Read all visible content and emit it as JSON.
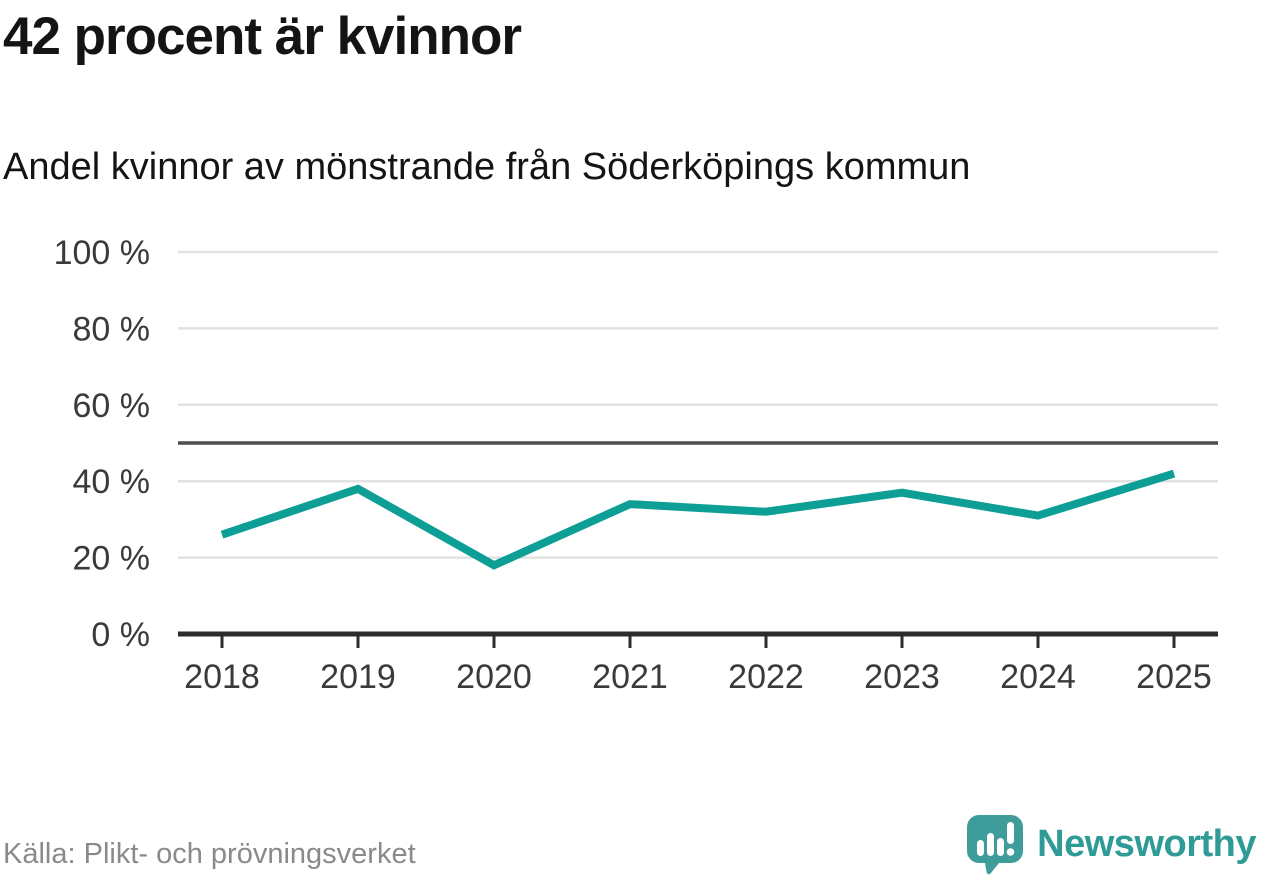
{
  "header": {
    "title": "42 procent är kvinnor",
    "subtitle": "Andel kvinnor av mönstrande från Söderköpings kommun"
  },
  "footer": {
    "source": "Källa: Plikt- och prövningsverket",
    "brand": "Newsworthy"
  },
  "colors": {
    "line": "#0d9e96",
    "grid": "#e2e2e2",
    "axis": "#2d2d2d",
    "reference": "#4d4d4d",
    "label": "#3a3a3a",
    "source_text": "#8a8a8a",
    "brand_bubble": "#3e9d9a",
    "brand_text": "#2f9b97"
  },
  "chart_data": {
    "type": "line",
    "title": "42 procent är kvinnor",
    "subtitle": "Andel kvinnor av mönstrande från Söderköpings kommun",
    "categories": [
      "2018",
      "2019",
      "2020",
      "2021",
      "2022",
      "2023",
      "2024",
      "2025"
    ],
    "series": [
      {
        "name": "Andel kvinnor av mönstrande",
        "values": [
          26,
          38,
          18,
          34,
          32,
          37,
          31,
          42
        ]
      }
    ],
    "unit": "%",
    "ylim": [
      0,
      100
    ],
    "yticks": [
      {
        "value": 0,
        "label": "0 %"
      },
      {
        "value": 20,
        "label": "20 %"
      },
      {
        "value": 40,
        "label": "40 %"
      },
      {
        "value": 60,
        "label": "60 %"
      },
      {
        "value": 80,
        "label": "80 %"
      },
      {
        "value": 100,
        "label": "100 %"
      }
    ],
    "reference_line": {
      "value": 50
    },
    "grid": true,
    "legend": false
  }
}
